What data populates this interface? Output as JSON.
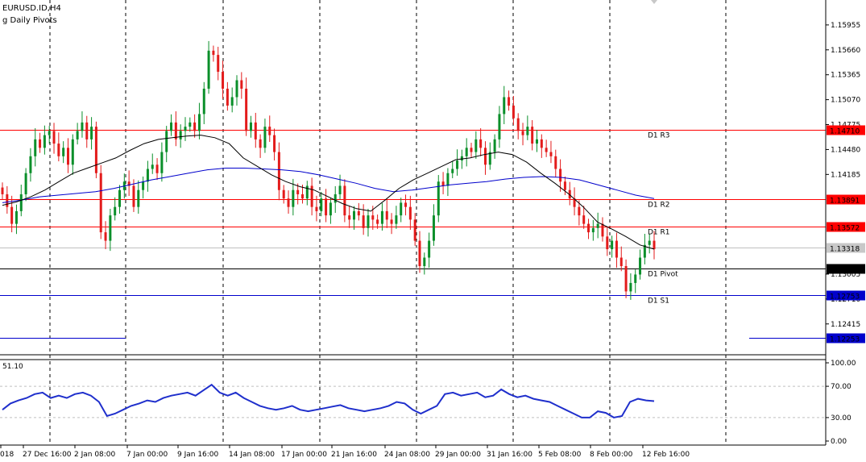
{
  "window": {
    "symbol_title": "EURUSD.ID,H4",
    "indicator_title": "g Daily Pivots"
  },
  "chart_data": {
    "type": "candlestick",
    "symbol": "EURUSD.ID",
    "timeframe": "H4",
    "price_axis_ticks": [
      "1.15955",
      "1.15660",
      "1.15365",
      "1.15070",
      "1.14775",
      "1.14480",
      "1.14185",
      "1.13005",
      "1.12710",
      "1.12415"
    ],
    "date_axis_labels": [
      "018",
      "27 Dec 16:00",
      "2 Jan 08:00",
      "7 Jan 00:00",
      "9 Jan 16:00",
      "14 Jan 08:00",
      "17 Jan 00:00",
      "21 Jan 16:00",
      "24 Jan 08:00",
      "29 Jan 00:00",
      "31 Jan 16:00",
      "5 Feb 08:00",
      "8 Feb 00:00",
      "12 Feb 16:00"
    ],
    "ylim": [
      1.1205,
      1.1625
    ],
    "closes": [
      1.1395,
      1.138,
      1.136,
      1.1375,
      1.1395,
      1.142,
      1.144,
      1.146,
      1.145,
      1.1465,
      1.147,
      1.1455,
      1.144,
      1.145,
      1.143,
      1.146,
      1.147,
      1.148,
      1.146,
      1.1475,
      1.142,
      1.135,
      1.134,
      1.137,
      1.138,
      1.14,
      1.141,
      1.1405,
      1.138,
      1.14,
      1.141,
      1.1425,
      1.143,
      1.142,
      1.1445,
      1.147,
      1.148,
      1.146,
      1.147,
      1.1475,
      1.148,
      1.147,
      1.149,
      1.152,
      1.1565,
      1.156,
      1.154,
      1.152,
      1.15,
      1.151,
      1.153,
      1.152,
      1.147,
      1.148,
      1.146,
      1.145,
      1.1475,
      1.1465,
      1.1445,
      1.14,
      1.139,
      1.138,
      1.14,
      1.1395,
      1.139,
      1.1405,
      1.138,
      1.1375,
      1.139,
      1.137,
      1.1385,
      1.1395,
      1.1405,
      1.137,
      1.1365,
      1.1375,
      1.137,
      1.1355,
      1.137,
      1.1365,
      1.136,
      1.1375,
      1.1365,
      1.136,
      1.137,
      1.1385,
      1.138,
      1.1365,
      1.134,
      1.131,
      1.132,
      1.134,
      1.137,
      1.141,
      1.1405,
      1.142,
      1.1425,
      1.1435,
      1.144,
      1.145,
      1.1445,
      1.146,
      1.145,
      1.143,
      1.1445,
      1.146,
      1.149,
      1.151,
      1.15,
      1.1485,
      1.147,
      1.1465,
      1.1475,
      1.1455,
      1.146,
      1.145,
      1.1445,
      1.144,
      1.1425,
      1.141,
      1.14,
      1.139,
      1.138,
      1.137,
      1.136,
      1.135,
      1.1355,
      1.136,
      1.1345,
      1.133,
      1.134,
      1.132,
      1.131,
      1.128,
      1.129,
      1.13,
      1.132,
      1.1335,
      1.134,
      1.133
    ],
    "sma_fast": [
      1.1382,
      1.1386,
      1.1392,
      1.14,
      1.141,
      1.142,
      1.1426,
      1.1432,
      1.1438,
      1.1447,
      1.1455,
      1.146,
      1.1462,
      1.1464,
      1.1465,
      1.1462,
      1.1455,
      1.1438,
      1.1428,
      1.1418,
      1.141,
      1.1404,
      1.14,
      1.1392,
      1.1384,
      1.1378,
      1.1375,
      1.1388,
      1.1402,
      1.1412,
      1.142,
      1.1428,
      1.1436,
      1.1438,
      1.1442,
      1.1445,
      1.1442,
      1.1433,
      1.142,
      1.1408,
      1.1395,
      1.138,
      1.1362,
      1.1354,
      1.1345,
      1.1335,
      1.133
    ],
    "sma_slow": [
      1.1385,
      1.1388,
      1.1392,
      1.1394,
      1.1396,
      1.1398,
      1.1402,
      1.1407,
      1.1412,
      1.1416,
      1.142,
      1.1424,
      1.1426,
      1.1426,
      1.1425,
      1.1424,
      1.1422,
      1.1418,
      1.1413,
      1.1408,
      1.1402,
      1.1398,
      1.14,
      1.1403,
      1.1406,
      1.1408,
      1.141,
      1.1413,
      1.1415,
      1.1416,
      1.1415,
      1.1412,
      1.1406,
      1.14,
      1.1394,
      1.139
    ],
    "pivot_levels": [
      {
        "name": "D1 R3",
        "value": "1.14710",
        "color": "#ff0000"
      },
      {
        "name": "D1 R2",
        "value": "1.13891",
        "color": "#ff0000"
      },
      {
        "name": "D1 R1",
        "value": "1.13572",
        "color": "#ff0000"
      },
      {
        "name": "D1 Pivot",
        "value": "1.13072",
        "color": "#000000"
      },
      {
        "name": "D1 S1",
        "value": "1.12753",
        "color": "#0000cc"
      }
    ],
    "bid_price": "1.13318",
    "previous_level": {
      "value": "1.12253",
      "color": "#0000cc"
    },
    "oscillator": {
      "current_value": "51.10",
      "ticks": [
        "100.00",
        "70.00",
        "30.00",
        "0.00"
      ],
      "levels": [
        70,
        30
      ],
      "ylim": [
        0,
        100
      ],
      "values": [
        40,
        48,
        52,
        55,
        60,
        62,
        55,
        58,
        55,
        60,
        62,
        58,
        50,
        32,
        35,
        40,
        45,
        48,
        52,
        50,
        55,
        58,
        60,
        62,
        58,
        65,
        72,
        62,
        58,
        62,
        55,
        50,
        45,
        42,
        40,
        42,
        45,
        40,
        38,
        40,
        42,
        44,
        46,
        42,
        40,
        38,
        40,
        42,
        45,
        50,
        48,
        40,
        35,
        40,
        45,
        60,
        62,
        58,
        60,
        62,
        56,
        58,
        66,
        60,
        56,
        58,
        54,
        52,
        50,
        45,
        40,
        35,
        30,
        30,
        38,
        36,
        30,
        32,
        50,
        54,
        52,
        51
      ]
    },
    "colors": {
      "bull_candle": "#0a8f2a",
      "bear_candle": "#e31b1b",
      "sma_fast": "#000000",
      "sma_slow": "#0000cc",
      "oscillator": "#1f2fcc",
      "bid_line": "#c0c0c0"
    }
  }
}
